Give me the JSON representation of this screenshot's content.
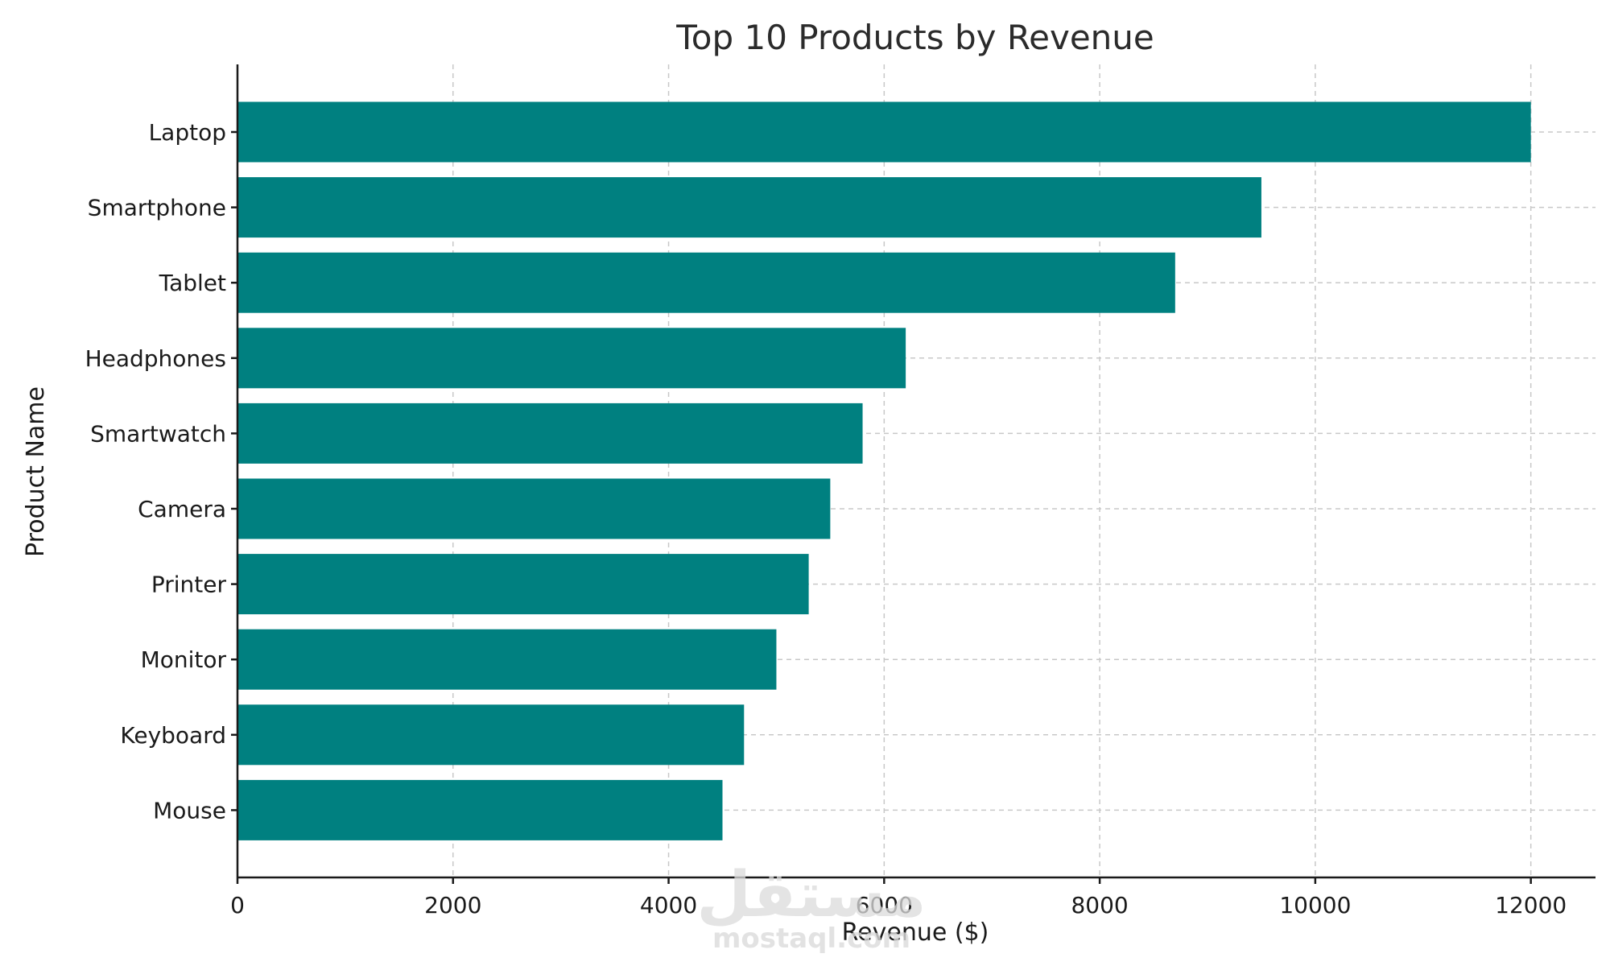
{
  "chart_data": {
    "type": "bar",
    "orientation": "horizontal",
    "title": "Top 10 Products by Revenue",
    "xlabel": "Revenue ($)",
    "ylabel": "Product Name",
    "categories": [
      "Laptop",
      "Smartphone",
      "Tablet",
      "Headphones",
      "Smartwatch",
      "Camera",
      "Printer",
      "Monitor",
      "Keyboard",
      "Mouse"
    ],
    "values": [
      12000,
      9500,
      8700,
      6200,
      5800,
      5500,
      5300,
      5000,
      4700,
      4500
    ],
    "xlim": [
      0,
      12600
    ],
    "xticks": [
      0,
      2000,
      4000,
      6000,
      8000,
      10000,
      12000
    ],
    "grid": true,
    "bar_color": "#008080"
  },
  "watermark": {
    "arabic": "مستقل",
    "latin": "mostaql.com"
  }
}
